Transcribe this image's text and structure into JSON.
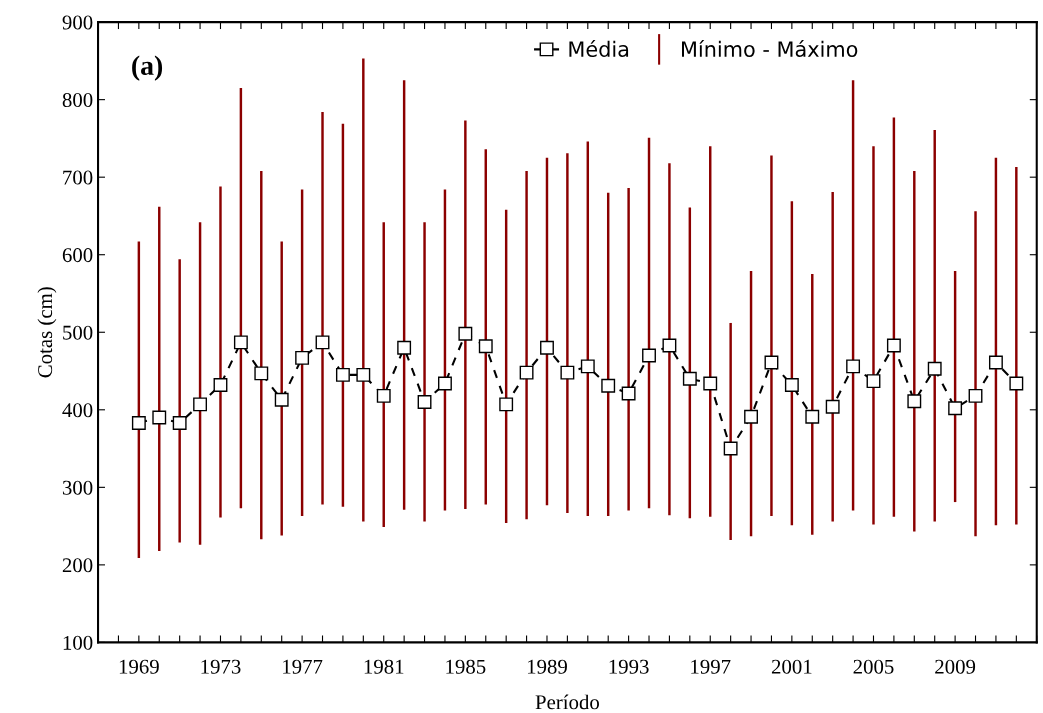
{
  "chart_data": {
    "type": "line",
    "xlabel": "Período",
    "ylabel": "Cotas (cm)",
    "x": [
      1969,
      1970,
      1971,
      1972,
      1973,
      1974,
      1975,
      1976,
      1977,
      1978,
      1979,
      1980,
      1981,
      1982,
      1983,
      1984,
      1985,
      1986,
      1987,
      1988,
      1989,
      1990,
      1991,
      1992,
      1993,
      1994,
      1995,
      1996,
      1997,
      1998,
      1999,
      2000,
      2001,
      2002,
      2003,
      2004,
      2005,
      2006,
      2007,
      2008,
      2009,
      2010,
      2011,
      2012
    ],
    "series": [
      {
        "name": "Mínimo - Máximo",
        "type": "bar",
        "color": "#8b0000",
        "base": [
          209,
          218,
          229,
          226,
          261,
          273,
          233,
          238,
          263,
          278,
          275,
          256,
          249,
          271,
          256,
          270,
          272,
          278,
          254,
          259,
          277,
          267,
          263,
          263,
          270,
          273,
          264,
          260,
          262,
          232,
          237,
          263,
          251,
          239,
          256,
          270,
          252,
          262,
          243,
          256,
          281,
          237,
          251,
          252
        ],
        "values": [
          408,
          444,
          365,
          416,
          427,
          542,
          475,
          379,
          421,
          506,
          494,
          597,
          393,
          554,
          386,
          414,
          501,
          458,
          404,
          449,
          448,
          464,
          483,
          417,
          416,
          478,
          454,
          401,
          478,
          280,
          342,
          465,
          418,
          336,
          425,
          555,
          488,
          515,
          465,
          505,
          298,
          419,
          474,
          461
        ]
      },
      {
        "name": "Média",
        "color": "#000000",
        "marker": "square",
        "line_style": "dashed",
        "values": [
          383,
          390,
          383,
          407,
          432,
          487,
          447,
          413,
          467,
          487,
          445,
          445,
          418,
          480,
          410,
          434,
          498,
          482,
          407,
          448,
          480,
          448,
          456,
          431,
          421,
          470,
          483,
          440,
          434,
          350,
          391,
          461,
          432,
          391,
          404,
          456,
          437,
          483,
          411,
          453,
          402,
          418,
          461,
          434
        ]
      }
    ],
    "xlim": [
      1967,
      2013
    ],
    "xticks": [
      {
        "value": 1967,
        "label": null
      },
      {
        "value": 1968,
        "label": null
      },
      1969,
      {
        "value": 1970,
        "label": null
      },
      {
        "value": 1971,
        "label": null
      },
      {
        "value": 1972,
        "label": null
      },
      1973,
      {
        "value": 1974,
        "label": null
      },
      {
        "value": 1975,
        "label": null
      },
      {
        "value": 1976,
        "label": null
      },
      1977,
      {
        "value": 1978,
        "label": null
      },
      {
        "value": 1979,
        "label": null
      },
      {
        "value": 1980,
        "label": null
      },
      1981,
      {
        "value": 1982,
        "label": null
      },
      {
        "value": 1983,
        "label": null
      },
      {
        "value": 1984,
        "label": null
      },
      1985,
      {
        "value": 1986,
        "label": null
      },
      {
        "value": 1987,
        "label": null
      },
      {
        "value": 1988,
        "label": null
      },
      1989,
      {
        "value": 1990,
        "label": null
      },
      {
        "value": 1991,
        "label": null
      },
      {
        "value": 1992,
        "label": null
      },
      1993,
      {
        "value": 1994,
        "label": null
      },
      {
        "value": 1995,
        "label": null
      },
      {
        "value": 1996,
        "label": null
      },
      1997,
      {
        "value": 1998,
        "label": null
      },
      {
        "value": 1999,
        "label": null
      },
      {
        "value": 2000,
        "label": null
      },
      2001,
      {
        "value": 2002,
        "label": null
      },
      {
        "value": 2003,
        "label": null
      },
      {
        "value": 2004,
        "label": null
      },
      2005,
      {
        "value": 2006,
        "label": null
      },
      {
        "value": 2007,
        "label": null
      },
      {
        "value": 2008,
        "label": null
      },
      2009,
      {
        "value": 2010,
        "label": null
      },
      {
        "value": 2011,
        "label": null
      },
      {
        "value": 2012,
        "label": null
      },
      {
        "value": 2013,
        "label": null
      }
    ],
    "ylim": [
      100,
      900
    ],
    "yticks": [
      100,
      200,
      300,
      400,
      500,
      600,
      700,
      800,
      900
    ],
    "annotations": [
      "(a)"
    ],
    "legend": "top right",
    "grid": false
  }
}
